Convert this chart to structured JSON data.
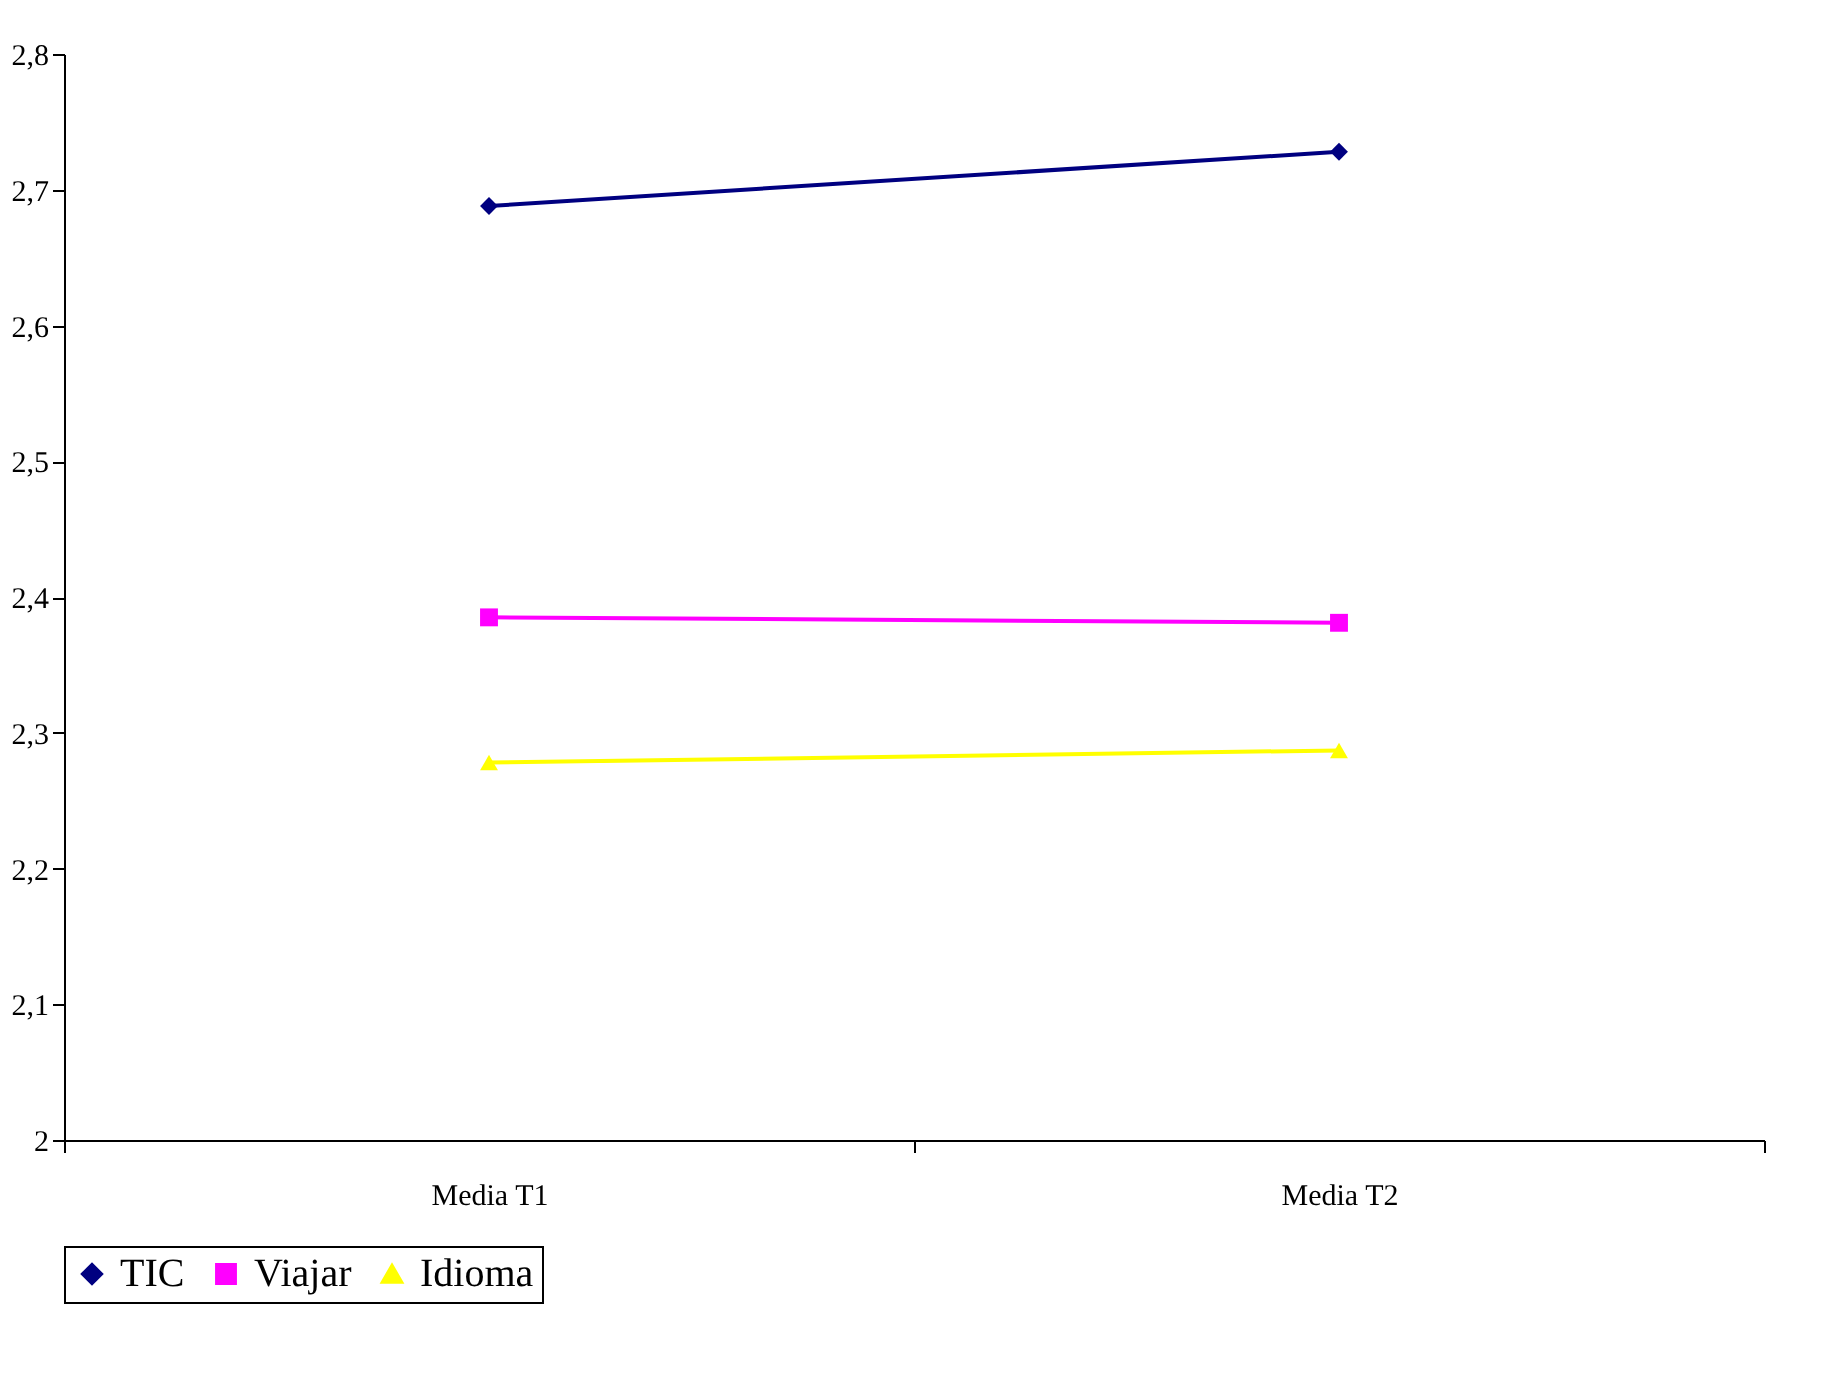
{
  "chart_data": {
    "type": "line",
    "categories": [
      "Media T1",
      "Media T2"
    ],
    "series": [
      {
        "name": "TIC",
        "color": "#000080",
        "marker": "diamond",
        "values": [
          2.688,
          2.728
        ]
      },
      {
        "name": "Viajar",
        "color": "#ff00ff",
        "marker": "square",
        "values": [
          2.385,
          2.381
        ]
      },
      {
        "name": "Idioma",
        "color": "#ffff00",
        "marker": "triangle",
        "values": [
          2.278,
          2.287
        ]
      }
    ],
    "ylim": [
      2,
      2.8
    ],
    "yticks": [
      2,
      {
        "value": 2.1,
        "label": "2,1"
      },
      {
        "value": 2.2,
        "label": "2,2"
      },
      {
        "value": 2.3,
        "label": "2,3"
      },
      {
        "value": 2.4,
        "label": "2,4"
      },
      {
        "value": 2.5,
        "label": "2,5"
      },
      {
        "value": 2.6,
        "label": "2,6"
      },
      {
        "value": 2.7,
        "label": "2,7"
      },
      {
        "value": 2.8,
        "label": "2,8"
      }
    ],
    "grid": false,
    "legend": "bottom",
    "line_style": "solid"
  }
}
